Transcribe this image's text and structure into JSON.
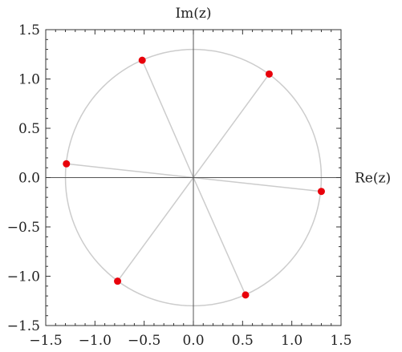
{
  "chart_data": {
    "type": "scatter",
    "xlabel": "Re(z)",
    "ylabel": "Im(z)",
    "xlim": [
      -1.5,
      1.5
    ],
    "ylim": [
      -1.5,
      1.5
    ],
    "xticks": [
      -1.5,
      -1.0,
      -0.5,
      0.0,
      0.5,
      1.0,
      1.5
    ],
    "yticks": [
      -1.5,
      -1.0,
      -0.5,
      0.0,
      0.5,
      1.0,
      1.5
    ],
    "xtick_labels": [
      "−1.5",
      "−1.0",
      "−0.5",
      "0.0",
      "0.5",
      "1.0",
      "1.5"
    ],
    "ytick_labels": [
      "−1.5",
      "−1.0",
      "−0.5",
      "0.0",
      "0.5",
      "1.0",
      "1.5"
    ],
    "circle_radius": 1.3,
    "points": [
      {
        "x": 0.77,
        "y": 1.05
      },
      {
        "x": -0.52,
        "y": 1.19
      },
      {
        "x": -1.29,
        "y": 0.14
      },
      {
        "x": -0.77,
        "y": -1.05
      },
      {
        "x": 0.53,
        "y": -1.19
      },
      {
        "x": 1.3,
        "y": -0.14
      }
    ],
    "grid": false,
    "colors": {
      "points": "#e8000b",
      "circle": "#cccccc",
      "spokes": "#cccccc",
      "axes": "#555555",
      "frame": "#333333"
    }
  }
}
